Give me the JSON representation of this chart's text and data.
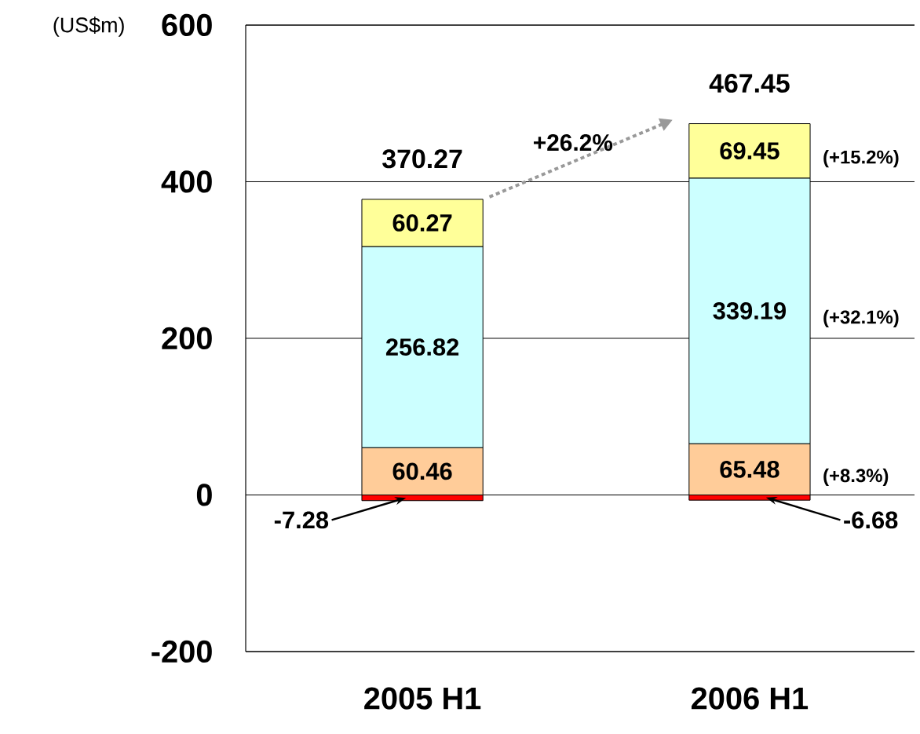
{
  "chart_data": {
    "type": "bar",
    "stacked": true,
    "ylabel": "(US$m)",
    "categories": [
      "2005 H1",
      "2006 H1"
    ],
    "series": [
      {
        "color": "#ff0000",
        "values": [
          -7.28,
          -6.68
        ]
      },
      {
        "color": "#ffcc99",
        "values": [
          60.46,
          65.48
        ]
      },
      {
        "color": "#ccffff",
        "values": [
          256.82,
          339.19
        ]
      },
      {
        "color": "#ffff99",
        "values": [
          60.27,
          69.45
        ]
      }
    ],
    "data_labels": true,
    "totals": [
      "370.27",
      "467.45"
    ],
    "annotations": [
      "+26.2%",
      "(+15.2%)",
      "(+32.1%)",
      "(+8.3%)"
    ],
    "ylim": [
      -200,
      600
    ],
    "yticks": [
      -200,
      0,
      200,
      400,
      600
    ],
    "grid": "y"
  }
}
